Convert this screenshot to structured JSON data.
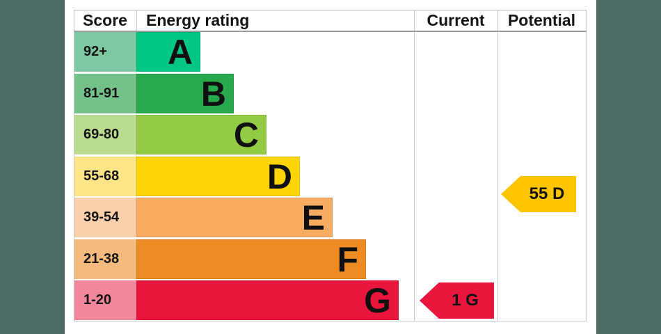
{
  "colors": {
    "background": "#4f6b68",
    "panel": "#ffffff",
    "grid_line": "#c9c9c9",
    "header_underline": "#9b9b9b",
    "text": "#141414"
  },
  "header": {
    "score": "Score",
    "energy_rating": "Energy rating",
    "current": "Current",
    "potential": "Potential"
  },
  "chart_data": {
    "type": "bar",
    "title": "Energy efficiency rating (EPC) band chart",
    "bands": [
      {
        "letter": "A",
        "score_range": "92+",
        "min": 92,
        "max": 100,
        "bar_color": "#00c781",
        "score_color": "#7cc8a3"
      },
      {
        "letter": "B",
        "score_range": "81-91",
        "min": 81,
        "max": 91,
        "bar_color": "#29a94e",
        "score_color": "#74c28a"
      },
      {
        "letter": "C",
        "score_range": "69-80",
        "min": 69,
        "max": 80,
        "bar_color": "#94cb44",
        "score_color": "#bbdc90"
      },
      {
        "letter": "D",
        "score_range": "55-68",
        "min": 55,
        "max": 68,
        "bar_color": "#ffd404",
        "score_color": "#fde487"
      },
      {
        "letter": "E",
        "score_range": "39-54",
        "min": 39,
        "max": 54,
        "bar_color": "#f7ac62",
        "score_color": "#f9d0ab"
      },
      {
        "letter": "F",
        "score_range": "21-38",
        "min": 21,
        "max": 38,
        "bar_color": "#ef8b23",
        "score_color": "#f4ba7e"
      },
      {
        "letter": "G",
        "score_range": "1-20",
        "min": 1,
        "max": 20,
        "bar_color": "#e9153c",
        "score_color": "#f2869b"
      }
    ],
    "current": {
      "value": 1,
      "band": "G",
      "label": "1 G",
      "color": "#e9153c"
    },
    "potential": {
      "value": 55,
      "band": "D",
      "label": "55 D",
      "color": "#fdc400"
    }
  }
}
